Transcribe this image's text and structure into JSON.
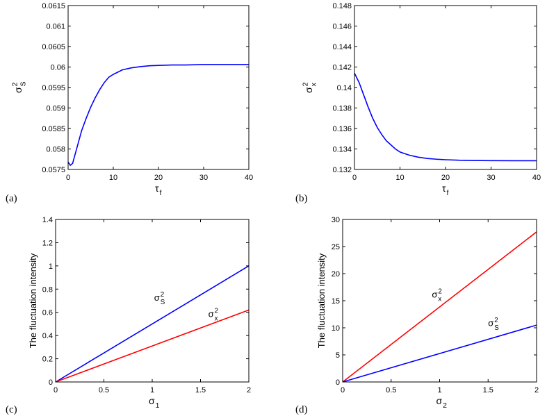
{
  "chart_data": [
    {
      "id": "a",
      "type": "line",
      "panel_label": "(a)",
      "xlabel": {
        "base": "τ",
        "sub": "f"
      },
      "ylabel": {
        "base": "σ",
        "sup": "2",
        "sub": "S"
      },
      "xlim": [
        0,
        40
      ],
      "ylim": [
        0.0575,
        0.0615
      ],
      "xticks": [
        0,
        10,
        20,
        30,
        40
      ],
      "xticklabels": [
        "0",
        "10",
        "20",
        "30",
        "40"
      ],
      "yticks": [
        0.0575,
        0.058,
        0.0585,
        0.059,
        0.0595,
        0.06,
        0.0605,
        0.061,
        0.0615
      ],
      "yticklabels": [
        "0.0575",
        "0.058",
        "0.0585",
        "0.059",
        "0.0595",
        "0.06",
        "0.0605",
        "0.061",
        "0.0615"
      ],
      "series": [
        {
          "color": "#0000ff",
          "x": [
            0,
            0.5,
            1,
            2,
            3,
            4,
            5,
            6,
            7,
            8,
            9,
            10,
            12,
            14,
            16,
            18,
            20,
            23,
            26,
            30,
            35,
            40
          ],
          "y": [
            0.05768,
            0.0576,
            0.05765,
            0.05805,
            0.05845,
            0.05875,
            0.05902,
            0.05925,
            0.05945,
            0.05962,
            0.05975,
            0.05982,
            0.05993,
            0.05998,
            0.06001,
            0.06003,
            0.06004,
            0.06005,
            0.06005,
            0.06006,
            0.06006,
            0.06006
          ]
        }
      ],
      "annotations": []
    },
    {
      "id": "b",
      "type": "line",
      "panel_label": "(b)",
      "xlabel": {
        "base": "τ",
        "sub": "f"
      },
      "ylabel": {
        "base": "σ",
        "sup": "2",
        "sub": "x"
      },
      "xlim": [
        0,
        40
      ],
      "ylim": [
        0.132,
        0.148
      ],
      "xticks": [
        0,
        10,
        20,
        30,
        40
      ],
      "xticklabels": [
        "0",
        "10",
        "20",
        "30",
        "40"
      ],
      "yticks": [
        0.132,
        0.134,
        0.136,
        0.138,
        0.14,
        0.142,
        0.144,
        0.146,
        0.148
      ],
      "yticklabels": [
        "0.132",
        "0.134",
        "0.136",
        "0.138",
        "0.14",
        "0.142",
        "0.144",
        "0.146",
        "0.148"
      ],
      "series": [
        {
          "color": "#0000ff",
          "x": [
            0,
            1,
            2,
            3,
            4,
            5,
            6,
            7,
            8,
            9,
            10,
            12,
            14,
            16,
            18,
            20,
            23,
            26,
            30,
            35,
            40
          ],
          "y": [
            0.1414,
            0.1405,
            0.1393,
            0.1381,
            0.137,
            0.1361,
            0.1354,
            0.1348,
            0.1344,
            0.134,
            0.1337,
            0.1334,
            0.1332,
            0.13307,
            0.133,
            0.13295,
            0.1329,
            0.13288,
            0.13286,
            0.13285,
            0.13285
          ]
        }
      ],
      "annotations": []
    },
    {
      "id": "c",
      "type": "line",
      "panel_label": "(c)",
      "xlabel": {
        "base": "σ",
        "sub": "1"
      },
      "ylabel": {
        "text": "The fluctuation intensity"
      },
      "xlim": [
        0,
        2
      ],
      "ylim": [
        0,
        1.4
      ],
      "xticks": [
        0,
        0.5,
        1,
        1.5,
        2
      ],
      "xticklabels": [
        "0",
        "0.5",
        "1",
        "1.5",
        "2"
      ],
      "yticks": [
        0,
        0.2,
        0.4,
        0.6,
        0.8,
        1,
        1.2,
        1.4
      ],
      "yticklabels": [
        "0",
        "0.2",
        "0.4",
        "0.6",
        "0.8",
        "1",
        "1.2",
        "1.4"
      ],
      "series": [
        {
          "color": "#0000ff",
          "x": [
            0,
            2
          ],
          "y": [
            0,
            1.0
          ]
        },
        {
          "color": "#ff0000",
          "x": [
            0,
            2
          ],
          "y": [
            0,
            0.62
          ]
        }
      ],
      "annotations": [
        {
          "base": "σ",
          "sup": "2",
          "sub": "S",
          "x": 1.02,
          "y": 0.7
        },
        {
          "base": "σ",
          "sup": "2",
          "sub": "x",
          "x": 1.58,
          "y": 0.56
        }
      ]
    },
    {
      "id": "d",
      "type": "line",
      "panel_label": "(d)",
      "xlabel": {
        "base": "σ",
        "sub": "2"
      },
      "ylabel": {
        "text": "The fluctuation intensity"
      },
      "xlim": [
        0,
        2
      ],
      "ylim": [
        0,
        30
      ],
      "xticks": [
        0,
        0.5,
        1,
        1.5,
        2
      ],
      "xticklabels": [
        "0",
        "0.5",
        "1",
        "1.5",
        "2"
      ],
      "yticks": [
        0,
        5,
        10,
        15,
        20,
        25,
        30
      ],
      "yticklabels": [
        "0",
        "5",
        "10",
        "15",
        "20",
        "25",
        "30"
      ],
      "series": [
        {
          "color": "#ff0000",
          "x": [
            0,
            2
          ],
          "y": [
            0,
            27.7
          ]
        },
        {
          "color": "#0000ff",
          "x": [
            0,
            2
          ],
          "y": [
            0,
            10.5
          ]
        }
      ],
      "annotations": [
        {
          "base": "σ",
          "sup": "2",
          "sub": "x",
          "x": 0.92,
          "y": 15.6
        },
        {
          "base": "σ",
          "sup": "2",
          "sub": "S",
          "x": 1.5,
          "y": 10.3
        }
      ]
    }
  ]
}
